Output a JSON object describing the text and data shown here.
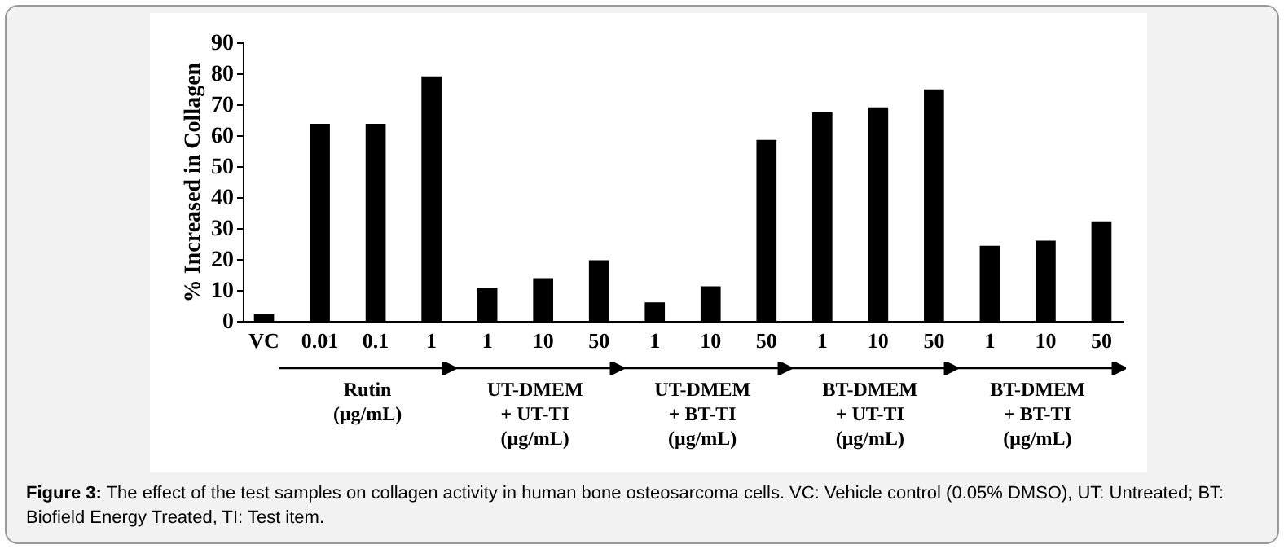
{
  "chart_data": {
    "type": "bar",
    "ylabel": "% Increased in Collagen",
    "categories": [
      "VC",
      "0.01",
      "0.1",
      "1",
      "1",
      "10",
      "50",
      "1",
      "10",
      "50",
      "1",
      "10",
      "50",
      "1",
      "10",
      "50"
    ],
    "values": [
      2.3,
      63.7,
      63.7,
      79,
      10.7,
      13.8,
      19.6,
      6,
      11.2,
      58.5,
      67.4,
      69,
      74.8,
      24.3,
      25.9,
      32.2
    ],
    "color": "#000000",
    "ylim": [
      0,
      90
    ],
    "yticks": [
      0,
      10,
      20,
      30,
      40,
      50,
      60,
      70,
      80,
      90
    ],
    "grid": false,
    "annotations": [
      "Rutin\n(μg/mL)",
      "UT-DMEM\n+ UT-TI\n(μg/mL)",
      "UT-DMEM\n+ BT-TI\n(μg/mL)",
      "BT-DMEM\n+ UT-TI\n(μg/mL)",
      "BT-DMEM\n+ BT-TI\n(μg/mL)",
      "Figure 3: The effect of the test samples on collagen activity in human bone osteosarcoma cells. VC: Vehicle control (0.05% DMSO), UT: Untreated; BT: Biofield Energy Treated, TI: Test item."
    ]
  }
}
